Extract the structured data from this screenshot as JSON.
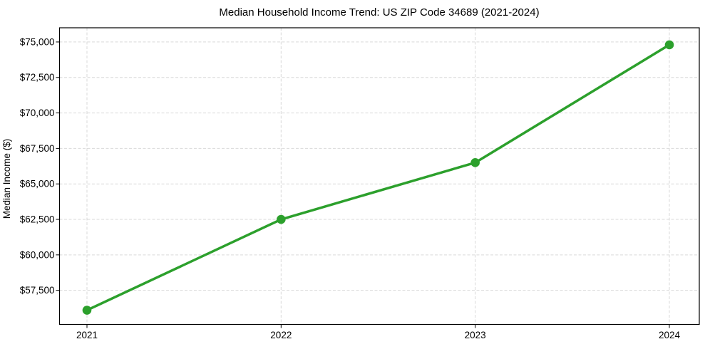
{
  "figure": {
    "title": "Median Household Income Trend: US ZIP Code 34689 (2021-2024)",
    "ylabel": "Median Income ($)"
  },
  "chart_data": {
    "type": "line",
    "title": "Median Household Income Trend: US ZIP Code 34689 (2021-2024)",
    "xlabel": "",
    "ylabel": "Median Income ($)",
    "x": [
      2021,
      2022,
      2023,
      2024
    ],
    "x_labels": [
      "2021",
      "2022",
      "2023",
      "2024"
    ],
    "series": [
      {
        "name": "Median Household Income",
        "values": [
          56100,
          62500,
          66500,
          74800
        ]
      }
    ],
    "yticks": [
      57500,
      60000,
      62500,
      65000,
      67500,
      70000,
      72500,
      75000
    ],
    "ytick_labels": [
      "$57,500",
      "$60,000",
      "$62,500",
      "$65,000",
      "$67,500",
      "$70,000",
      "$72,500",
      "$75,000"
    ],
    "ylim": [
      55100,
      76000
    ],
    "grid": "dashed-both-axes",
    "legend": "none",
    "line_color": "#2ca02c",
    "marker": "circle",
    "marker_color": "#2ca02c",
    "grid_color": "#d9d9d9",
    "axis_color": "#000000",
    "background_color": "#ffffff"
  }
}
